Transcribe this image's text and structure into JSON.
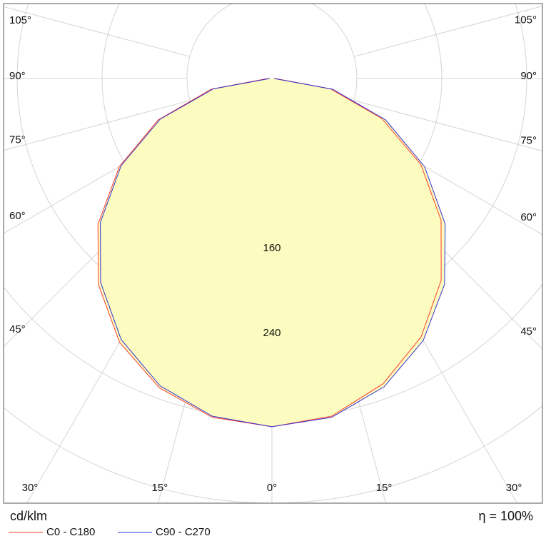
{
  "chart_data": {
    "type": "polar",
    "unit": "cd/klm",
    "annotation": "η = 100%",
    "angles": [
      -90,
      -80,
      -70,
      -60,
      -50,
      -40,
      -30,
      -20,
      -10,
      0,
      10,
      20,
      30,
      40,
      50,
      60,
      70,
      80,
      90
    ],
    "series": [
      {
        "name": "C0 - C180",
        "color": "#ff3b2f",
        "values": [
          4,
          58,
          114,
          166,
          214,
          254,
          287,
          310,
          324,
          328,
          323,
          306,
          281,
          248,
          208,
          162,
          110,
          56,
          3
        ]
      },
      {
        "name": "C90 - C270",
        "color": "#3030d0",
        "values": [
          2,
          56,
          112,
          164,
          211,
          251,
          284,
          308,
          323,
          328,
          324,
          309,
          285,
          253,
          213,
          166,
          114,
          58,
          2
        ]
      }
    ],
    "fill_color": "#fdfcc0",
    "rgrid": [
      80,
      160,
      240,
      320,
      400
    ],
    "rticks": [
      160,
      240
    ],
    "angle_ticks": [
      {
        "value": -105,
        "label": "105°"
      },
      {
        "value": -90,
        "label": "90°"
      },
      {
        "value": -75,
        "label": "75°"
      },
      {
        "value": -60,
        "label": "60°"
      },
      {
        "value": -45,
        "label": "45°"
      },
      {
        "value": -30,
        "label": "30°"
      },
      {
        "value": -15,
        "label": "15°"
      },
      {
        "value": 0,
        "label": "0°"
      },
      {
        "value": 15,
        "label": "15°"
      },
      {
        "value": 30,
        "label": "30°"
      },
      {
        "value": 45,
        "label": "45°"
      },
      {
        "value": 60,
        "label": "60°"
      },
      {
        "value": 75,
        "label": "75°"
      },
      {
        "value": 90,
        "label": "90°"
      },
      {
        "value": 105,
        "label": "105°"
      }
    ]
  }
}
